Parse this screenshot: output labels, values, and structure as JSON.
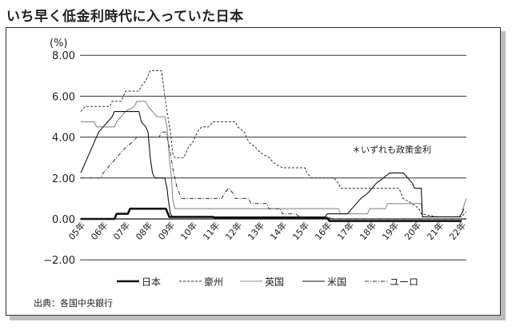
{
  "title": "いち早く低金利時代に入っていた日本",
  "source": "出典：各国中央銀行",
  "note": "＊いずれも政策金利",
  "chart_data": {
    "type": "line",
    "title": "いち早く低金利時代に入っていた日本",
    "xlabel": "",
    "ylabel": "(%)",
    "ylim": [
      -2.0,
      8.0
    ],
    "yticks": [
      "8.00",
      "6.00",
      "4.00",
      "2.00",
      "0.00",
      "−2.00"
    ],
    "ytick_values": [
      8,
      6,
      4,
      2,
      0,
      -2
    ],
    "categories": [
      "05年",
      "06年",
      "07年",
      "08年",
      "09年",
      "10年",
      "11年",
      "12年",
      "13年",
      "14年",
      "15年",
      "16年",
      "17年",
      "18年",
      "19年",
      "20年",
      "21年",
      "22年"
    ],
    "grid": true,
    "legend_position": "bottom",
    "annotation": "＊いずれも政策金利",
    "source": "出典：各国中央銀行",
    "series": [
      {
        "name": "日本",
        "style": "thick-solid",
        "color": "#111111",
        "points": [
          [
            2005.0,
            0.0
          ],
          [
            2006.5,
            0.0
          ],
          [
            2006.6,
            0.25
          ],
          [
            2007.1,
            0.25
          ],
          [
            2007.2,
            0.5
          ],
          [
            2008.8,
            0.5
          ],
          [
            2008.95,
            0.1
          ],
          [
            2010.9,
            0.1
          ],
          [
            2011.0,
            0.05
          ],
          [
            2016.0,
            0.05
          ],
          [
            2016.1,
            -0.1
          ],
          [
            2022.0,
            -0.1
          ]
        ]
      },
      {
        "name": "豪州",
        "style": "dashed",
        "color": "#333333",
        "points": [
          [
            2005.0,
            5.25
          ],
          [
            2005.2,
            5.5
          ],
          [
            2006.3,
            5.5
          ],
          [
            2006.4,
            5.75
          ],
          [
            2006.8,
            5.75
          ],
          [
            2006.9,
            6.0
          ],
          [
            2007.0,
            6.25
          ],
          [
            2007.6,
            6.25
          ],
          [
            2007.7,
            6.5
          ],
          [
            2007.9,
            6.75
          ],
          [
            2008.0,
            7.0
          ],
          [
            2008.1,
            7.25
          ],
          [
            2008.6,
            7.25
          ],
          [
            2008.75,
            6.0
          ],
          [
            2008.85,
            5.25
          ],
          [
            2009.0,
            4.25
          ],
          [
            2009.1,
            3.25
          ],
          [
            2009.2,
            3.0
          ],
          [
            2009.6,
            3.0
          ],
          [
            2009.8,
            3.5
          ],
          [
            2010.0,
            3.75
          ],
          [
            2010.2,
            4.25
          ],
          [
            2010.4,
            4.5
          ],
          [
            2010.7,
            4.5
          ],
          [
            2010.9,
            4.75
          ],
          [
            2011.9,
            4.75
          ],
          [
            2012.0,
            4.5
          ],
          [
            2012.3,
            4.25
          ],
          [
            2012.5,
            3.75
          ],
          [
            2012.8,
            3.5
          ],
          [
            2013.0,
            3.25
          ],
          [
            2013.4,
            3.0
          ],
          [
            2013.6,
            2.75
          ],
          [
            2014.0,
            2.5
          ],
          [
            2015.0,
            2.5
          ],
          [
            2015.1,
            2.25
          ],
          [
            2015.3,
            2.0
          ],
          [
            2016.3,
            2.0
          ],
          [
            2016.5,
            1.75
          ],
          [
            2016.6,
            1.5
          ],
          [
            2018.0,
            1.5
          ],
          [
            2019.2,
            1.5
          ],
          [
            2019.4,
            1.0
          ],
          [
            2019.8,
            0.75
          ],
          [
            2020.1,
            0.5
          ],
          [
            2020.2,
            0.25
          ],
          [
            2020.9,
            0.1
          ],
          [
            2022.0,
            0.1
          ],
          [
            2022.2,
            0.35
          ]
        ]
      },
      {
        "name": "英国",
        "style": "thin-solid-gray",
        "color": "#8a8a8a",
        "points": [
          [
            2005.0,
            4.75
          ],
          [
            2005.6,
            4.75
          ],
          [
            2005.7,
            4.5
          ],
          [
            2006.5,
            4.5
          ],
          [
            2006.6,
            4.75
          ],
          [
            2006.8,
            5.0
          ],
          [
            2007.0,
            5.25
          ],
          [
            2007.4,
            5.5
          ],
          [
            2007.5,
            5.75
          ],
          [
            2007.9,
            5.75
          ],
          [
            2008.0,
            5.5
          ],
          [
            2008.2,
            5.25
          ],
          [
            2008.4,
            5.0
          ],
          [
            2008.75,
            5.0
          ],
          [
            2008.85,
            4.5
          ],
          [
            2008.95,
            3.0
          ],
          [
            2009.05,
            2.0
          ],
          [
            2009.1,
            1.0
          ],
          [
            2009.2,
            0.5
          ],
          [
            2016.5,
            0.5
          ],
          [
            2016.6,
            0.25
          ],
          [
            2017.8,
            0.25
          ],
          [
            2017.9,
            0.5
          ],
          [
            2018.6,
            0.5
          ],
          [
            2018.7,
            0.75
          ],
          [
            2020.2,
            0.75
          ],
          [
            2020.25,
            0.1
          ],
          [
            2021.9,
            0.1
          ],
          [
            2022.0,
            0.25
          ],
          [
            2022.2,
            1.0
          ]
        ]
      },
      {
        "name": "米国",
        "style": "solid",
        "color": "#111111",
        "points": [
          [
            2005.0,
            2.25
          ],
          [
            2005.2,
            2.75
          ],
          [
            2005.4,
            3.25
          ],
          [
            2005.6,
            3.75
          ],
          [
            2005.8,
            4.25
          ],
          [
            2006.0,
            4.5
          ],
          [
            2006.2,
            4.75
          ],
          [
            2006.4,
            5.0
          ],
          [
            2006.5,
            5.25
          ],
          [
            2007.6,
            5.25
          ],
          [
            2007.7,
            4.75
          ],
          [
            2007.9,
            4.5
          ],
          [
            2008.0,
            4.25
          ],
          [
            2008.1,
            3.0
          ],
          [
            2008.2,
            2.25
          ],
          [
            2008.3,
            2.0
          ],
          [
            2008.75,
            2.0
          ],
          [
            2008.85,
            1.5
          ],
          [
            2008.9,
            1.0
          ],
          [
            2009.0,
            0.25
          ],
          [
            2009.1,
            0.1
          ],
          [
            2015.9,
            0.1
          ],
          [
            2016.0,
            0.25
          ],
          [
            2016.9,
            0.25
          ],
          [
            2017.1,
            0.5
          ],
          [
            2017.3,
            0.75
          ],
          [
            2017.5,
            1.0
          ],
          [
            2017.8,
            1.25
          ],
          [
            2018.0,
            1.5
          ],
          [
            2018.2,
            1.75
          ],
          [
            2018.5,
            2.0
          ],
          [
            2018.8,
            2.25
          ],
          [
            2019.4,
            2.25
          ],
          [
            2019.6,
            2.0
          ],
          [
            2019.8,
            1.75
          ],
          [
            2019.9,
            1.5
          ],
          [
            2020.2,
            1.5
          ],
          [
            2020.25,
            0.1
          ],
          [
            2021.9,
            0.1
          ],
          [
            2022.0,
            0.25
          ],
          [
            2022.1,
            0.5
          ]
        ]
      },
      {
        "name": "ユーロ",
        "style": "dash-dot",
        "color": "#333333",
        "points": [
          [
            2005.0,
            2.0
          ],
          [
            2005.9,
            2.0
          ],
          [
            2006.0,
            2.25
          ],
          [
            2006.2,
            2.5
          ],
          [
            2006.4,
            2.75
          ],
          [
            2006.6,
            3.0
          ],
          [
            2006.8,
            3.25
          ],
          [
            2007.0,
            3.5
          ],
          [
            2007.3,
            3.75
          ],
          [
            2007.5,
            4.0
          ],
          [
            2008.5,
            4.0
          ],
          [
            2008.6,
            4.25
          ],
          [
            2008.8,
            4.25
          ],
          [
            2008.9,
            3.75
          ],
          [
            2009.0,
            3.25
          ],
          [
            2009.1,
            2.5
          ],
          [
            2009.2,
            2.0
          ],
          [
            2009.3,
            1.5
          ],
          [
            2009.4,
            1.25
          ],
          [
            2009.5,
            1.0
          ],
          [
            2011.3,
            1.0
          ],
          [
            2011.4,
            1.25
          ],
          [
            2011.6,
            1.5
          ],
          [
            2011.8,
            1.25
          ],
          [
            2011.9,
            1.0
          ],
          [
            2012.5,
            1.0
          ],
          [
            2012.6,
            0.75
          ],
          [
            2013.3,
            0.75
          ],
          [
            2013.4,
            0.5
          ],
          [
            2013.9,
            0.5
          ],
          [
            2014.0,
            0.25
          ],
          [
            2014.6,
            0.25
          ],
          [
            2014.7,
            0.15
          ],
          [
            2014.9,
            0.05
          ],
          [
            2016.2,
            0.05
          ],
          [
            2016.3,
            0.0
          ],
          [
            2022.0,
            0.0
          ]
        ]
      }
    ]
  },
  "axis": {
    "unit": "(%)",
    "y_labels": [
      "8.00",
      "6.00",
      "4.00",
      "2.00",
      "0.00",
      "−2.00"
    ],
    "x_labels": [
      "05年",
      "06年",
      "07年",
      "08年",
      "09年",
      "10年",
      "11年",
      "12年",
      "13年",
      "14年",
      "15年",
      "16年",
      "17年",
      "18年",
      "19年",
      "20年",
      "21年",
      "22年"
    ]
  },
  "legend": [
    {
      "label": "日本",
      "style": "thick-solid"
    },
    {
      "label": "豪州",
      "style": "dashed"
    },
    {
      "label": "英国",
      "style": "thin-solid-gray"
    },
    {
      "label": "米国",
      "style": "solid"
    },
    {
      "label": "ユーロ",
      "style": "dash-dot"
    }
  ]
}
